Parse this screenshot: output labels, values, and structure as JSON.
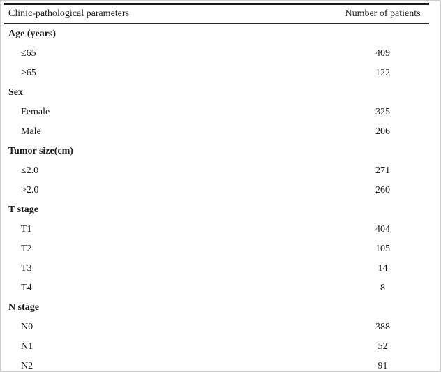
{
  "colors": {
    "text": "#1b1b1b",
    "rule_thick": "#1a1a1a",
    "rule_thin": "#262626",
    "frame_border": "#cccccc",
    "background": "#ffffff"
  },
  "table": {
    "columns": [
      "Clinic-pathological parameters",
      "Number of patients"
    ],
    "rows": [
      {
        "label": "Age (years)",
        "value": "",
        "type": "category"
      },
      {
        "label": "≤65",
        "value": "409",
        "type": "item"
      },
      {
        "label": ">65",
        "value": "122",
        "type": "item"
      },
      {
        "label": "Sex",
        "value": "",
        "type": "category"
      },
      {
        "label": "Female",
        "value": "325",
        "type": "item"
      },
      {
        "label": "Male",
        "value": "206",
        "type": "item"
      },
      {
        "label": "Tumor size(cm)",
        "value": "",
        "type": "category"
      },
      {
        "label": "≤2.0",
        "value": "271",
        "type": "item"
      },
      {
        "label": ">2.0",
        "value": "260",
        "type": "item"
      },
      {
        "label": "T stage",
        "value": "",
        "type": "category"
      },
      {
        "label": "T1",
        "value": "404",
        "type": "item"
      },
      {
        "label": "T2",
        "value": "105",
        "type": "item"
      },
      {
        "label": "T3",
        "value": "14",
        "type": "item"
      },
      {
        "label": "T4",
        "value": "8",
        "type": "item"
      },
      {
        "label": "N stage",
        "value": "",
        "type": "category"
      },
      {
        "label": "N0",
        "value": "388",
        "type": "item"
      },
      {
        "label": "N1",
        "value": "52",
        "type": "item"
      },
      {
        "label": "N2",
        "value": "91",
        "type": "item"
      }
    ]
  }
}
